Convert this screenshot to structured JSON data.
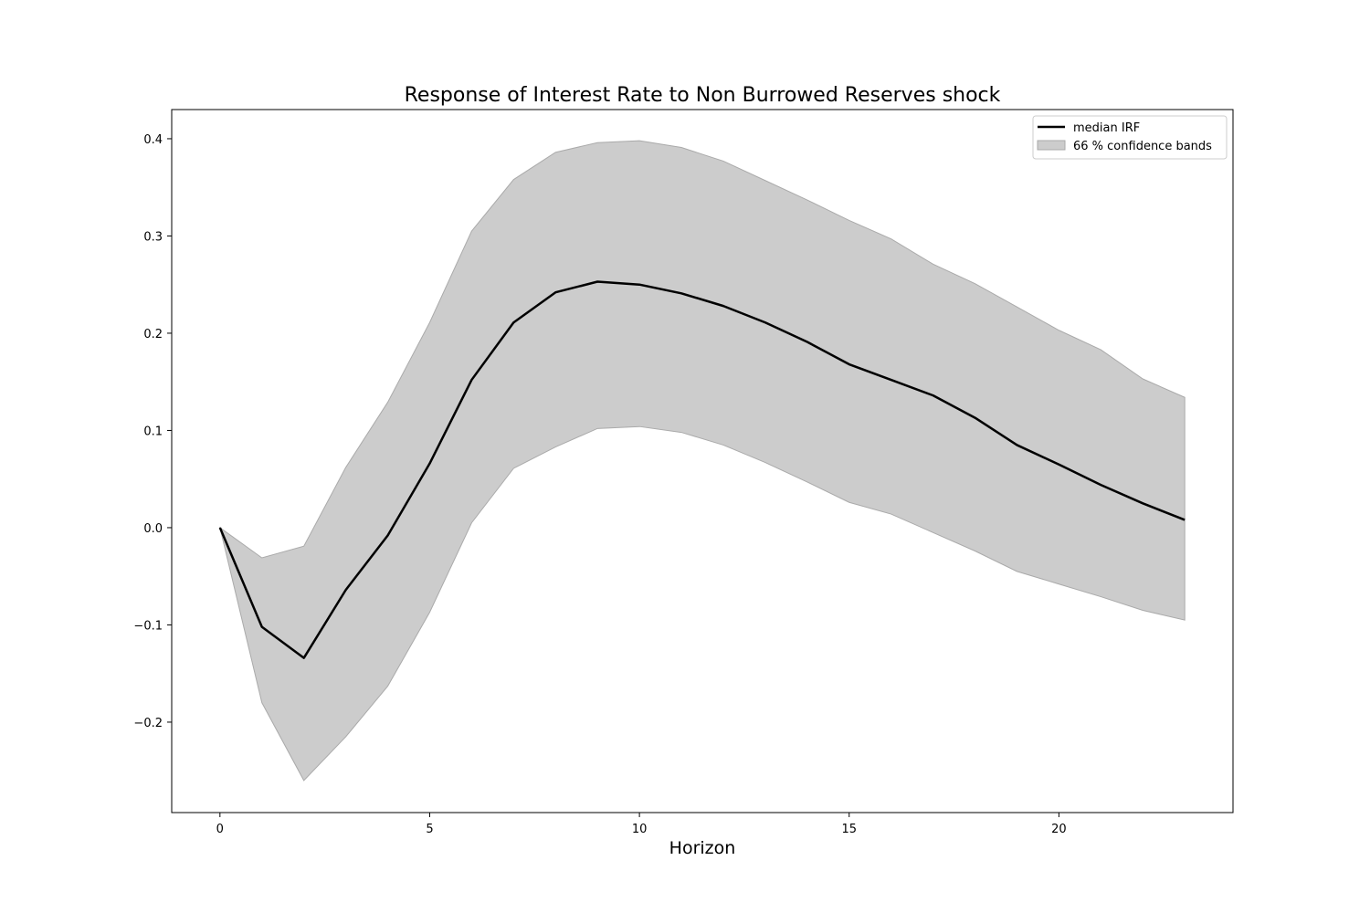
{
  "chart_data": {
    "type": "line",
    "title": "Response of Interest Rate to Non Burrowed Reserves shock",
    "xlabel": "Horizon",
    "ylabel": "",
    "xlim": [
      -1.15,
      24.15
    ],
    "ylim": [
      -0.293,
      0.43
    ],
    "xticks": [
      0,
      5,
      10,
      15,
      20
    ],
    "xtick_labels": [
      "0",
      "5",
      "10",
      "15",
      "20"
    ],
    "yticks": [
      -0.2,
      -0.1,
      0.0,
      0.1,
      0.2,
      0.3,
      0.4
    ],
    "ytick_labels": [
      "−0.2",
      "−0.1",
      "0.0",
      "0.1",
      "0.2",
      "0.3",
      "0.4"
    ],
    "grid": false,
    "legend_position": "top-right",
    "x": [
      0,
      1,
      2,
      3,
      4,
      5,
      6,
      7,
      8,
      9,
      10,
      11,
      12,
      13,
      14,
      15,
      16,
      17,
      18,
      19,
      20,
      21,
      22,
      23
    ],
    "series": [
      {
        "name": "median IRF",
        "kind": "line",
        "color": "#000000",
        "values": [
          0.0,
          -0.102,
          -0.134,
          -0.064,
          -0.008,
          0.066,
          0.152,
          0.211,
          0.242,
          0.253,
          0.25,
          0.241,
          0.228,
          0.211,
          0.191,
          0.168,
          0.152,
          0.136,
          0.113,
          0.085,
          0.065,
          0.044,
          0.025,
          0.008
        ]
      },
      {
        "name": "66 % confidence bands",
        "kind": "band",
        "color": "#cccccc",
        "edge_color": "#aaaaaa",
        "lower": [
          0.0,
          -0.18,
          -0.26,
          -0.215,
          -0.163,
          -0.087,
          0.005,
          0.061,
          0.083,
          0.102,
          0.104,
          0.098,
          0.085,
          0.067,
          0.047,
          0.026,
          0.014,
          -0.005,
          -0.024,
          -0.045,
          -0.058,
          -0.071,
          -0.085,
          -0.095
        ],
        "upper": [
          0.0,
          -0.031,
          -0.019,
          0.062,
          0.129,
          0.211,
          0.305,
          0.358,
          0.386,
          0.396,
          0.398,
          0.391,
          0.377,
          0.357,
          0.337,
          0.316,
          0.297,
          0.271,
          0.251,
          0.227,
          0.203,
          0.183,
          0.153,
          0.134
        ]
      }
    ]
  }
}
